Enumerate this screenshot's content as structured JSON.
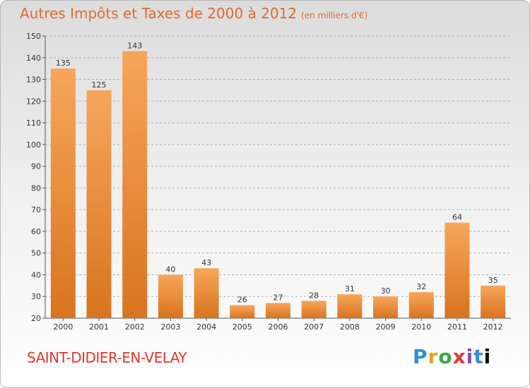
{
  "header": {
    "title": "Autres Impôts et Taxes de 2000 à 2012",
    "unit": "(en milliers d'€)"
  },
  "footer": {
    "commune": "SAINT-DIDIER-EN-VELAY",
    "logo": "Proxiti"
  },
  "chart_data": {
    "type": "bar",
    "title": "Autres Impôts et Taxes de 2000 à 2012",
    "subtitle": "(en milliers d'€)",
    "xlabel": "",
    "ylabel": "",
    "categories": [
      "2000",
      "2001",
      "2002",
      "2003",
      "2004",
      "2005",
      "2006",
      "2007",
      "2008",
      "2009",
      "2010",
      "2011",
      "2012"
    ],
    "values": [
      135,
      125,
      143,
      40,
      43,
      26,
      27,
      28,
      31,
      30,
      32,
      64,
      35
    ],
    "ylim": [
      20,
      150
    ],
    "yticks": [
      20,
      30,
      40,
      50,
      60,
      70,
      80,
      90,
      100,
      110,
      120,
      130,
      140,
      150
    ],
    "grid": true,
    "bar_color": "#f29a4a",
    "bar_color_dark": "#d7731f",
    "title_color": "#e26a2c",
    "commune_color": "#e2382e"
  }
}
